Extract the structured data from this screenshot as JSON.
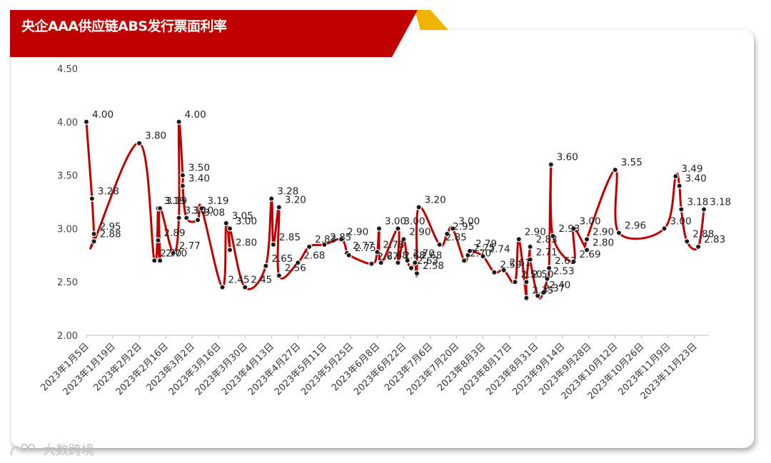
{
  "title": "央企AAA供应链ABS发行票面利率",
  "watermark": "大数跨境",
  "colors": {
    "line": "#c00000",
    "banner": "#c00000",
    "banner_accent": "#f0b400",
    "point": "#1a1a1a"
  },
  "chart_data": {
    "type": "line",
    "title": "央企AAA供应链ABS发行票面利率",
    "xlabel": "",
    "ylabel": "",
    "ylim": [
      2.0,
      4.5
    ],
    "y_ticks": [
      "2.00",
      "2.50",
      "3.00",
      "3.50",
      "4.00",
      "4.50"
    ],
    "x_tick_labels": [
      "2023年1月5日",
      "2023年1月19日",
      "2023年2月2日",
      "2023年2月16日",
      "2023年3月2日",
      "2023年3月16日",
      "2023年3月30日",
      "2023年4月13日",
      "2023年4月27日",
      "2023年5月11日",
      "2023年5月25日",
      "2023年6月8日",
      "2023年6月22日",
      "2023年7月6日",
      "2023年7月20日",
      "2023年8月3日",
      "2023年8月17日",
      "2023年8月31日",
      "2023年9月14日",
      "2023年9月28日",
      "2023年10月12日",
      "2023年10月26日",
      "2023年11月9日",
      "2023年11月23日"
    ],
    "grid": false,
    "legend": "none",
    "series": [
      {
        "values": [
          {
            "x": "2023-01-05",
            "y": 4.0,
            "label": "4.00"
          },
          {
            "x": "2023-01-08",
            "y": 3.28,
            "label": "3.28"
          },
          {
            "x": "2023-01-09",
            "y": 2.95,
            "label": "2.95"
          },
          {
            "x": "2023-01-09",
            "y": 2.88,
            "label": "2.88"
          },
          {
            "x": "2023-02-02",
            "y": 3.8,
            "label": "3.80"
          },
          {
            "x": "2023-02-10",
            "y": 2.7,
            "label": "2.70"
          },
          {
            "x": "2023-02-12",
            "y": 3.19,
            "label": "3.19"
          },
          {
            "x": "2023-02-12",
            "y": 2.89,
            "label": "2.89"
          },
          {
            "x": "2023-02-13",
            "y": 2.7,
            "label": "2.70"
          },
          {
            "x": "2023-02-13",
            "y": 3.19,
            "label": "3.19"
          },
          {
            "x": "2023-02-20",
            "y": 2.77,
            "label": "2.77"
          },
          {
            "x": "2023-02-23",
            "y": 3.1,
            "label": "3.10"
          },
          {
            "x": "2023-02-23",
            "y": 4.0,
            "label": "4.00"
          },
          {
            "x": "2023-02-25",
            "y": 3.5,
            "label": "3.50"
          },
          {
            "x": "2023-02-25",
            "y": 3.4,
            "label": "3.40"
          },
          {
            "x": "2023-02-27",
            "y": 3.1,
            "label": "3.10"
          },
          {
            "x": "2023-03-05",
            "y": 3.08,
            "label": "3.08"
          },
          {
            "x": "2023-03-07",
            "y": 3.19,
            "label": "3.19"
          },
          {
            "x": "2023-03-18",
            "y": 2.45,
            "label": "2.45"
          },
          {
            "x": "2023-03-20",
            "y": 3.05,
            "label": "3.05"
          },
          {
            "x": "2023-03-22",
            "y": 2.8,
            "label": "2.80"
          },
          {
            "x": "2023-03-22",
            "y": 3.0,
            "label": "3.00"
          },
          {
            "x": "2023-03-30",
            "y": 2.45,
            "label": "2.45"
          },
          {
            "x": "2023-04-10",
            "y": 2.65,
            "label": "2.65"
          },
          {
            "x": "2023-04-13",
            "y": 3.28,
            "label": "3.28"
          },
          {
            "x": "2023-04-14",
            "y": 2.85,
            "label": "2.85"
          },
          {
            "x": "2023-04-17",
            "y": 3.2,
            "label": "3.20"
          },
          {
            "x": "2023-04-17",
            "y": 2.56,
            "label": "2.56"
          },
          {
            "x": "2023-04-27",
            "y": 2.68,
            "label": "2.68"
          },
          {
            "x": "2023-05-03",
            "y": 2.83,
            "label": "2.83"
          },
          {
            "x": "2023-05-11",
            "y": 2.85,
            "label": "2.85"
          },
          {
            "x": "2023-05-20",
            "y": 2.9,
            "label": "2.90"
          },
          {
            "x": "2023-05-23",
            "y": 2.77,
            "label": "2.77"
          },
          {
            "x": "2023-05-24",
            "y": 2.75,
            "label": "2.75"
          },
          {
            "x": "2023-06-05",
            "y": 2.67,
            "label": "2.67"
          },
          {
            "x": "2023-06-08",
            "y": 2.78,
            "label": "2.78"
          },
          {
            "x": "2023-06-09",
            "y": 3.0,
            "label": "3.00"
          },
          {
            "x": "2023-06-10",
            "y": 2.68,
            "label": "2.68"
          },
          {
            "x": "2023-06-19",
            "y": 3.0,
            "label": "3.00"
          },
          {
            "x": "2023-06-19",
            "y": 2.68,
            "label": "2.68"
          },
          {
            "x": "2023-06-22",
            "y": 2.9,
            "label": "2.90"
          },
          {
            "x": "2023-06-24",
            "y": 2.7,
            "label": "2.70"
          },
          {
            "x": "2023-06-26",
            "y": 2.63,
            "label": "2.63"
          },
          {
            "x": "2023-06-28",
            "y": 2.68,
            "label": "2.68"
          },
          {
            "x": "2023-06-29",
            "y": 2.58,
            "label": "2.58"
          },
          {
            "x": "2023-06-30",
            "y": 3.2,
            "label": "3.20"
          },
          {
            "x": "2023-07-11",
            "y": 2.85,
            "label": "2.85"
          },
          {
            "x": "2023-07-15",
            "y": 2.95,
            "label": "2.95"
          },
          {
            "x": "2023-07-18",
            "y": 3.0,
            "label": "3.00"
          },
          {
            "x": "2023-07-24",
            "y": 2.7,
            "label": "2.70"
          },
          {
            "x": "2023-07-26",
            "y": 2.75,
            "label": "2.75"
          },
          {
            "x": "2023-07-27",
            "y": 2.79,
            "label": "2.79"
          },
          {
            "x": "2023-08-03",
            "y": 2.74,
            "label": "2.74"
          },
          {
            "x": "2023-08-09",
            "y": 2.59,
            "label": "2.59"
          },
          {
            "x": "2023-08-14",
            "y": 2.61,
            "label": "2.61"
          },
          {
            "x": "2023-08-20",
            "y": 2.5,
            "label": "2.50"
          },
          {
            "x": "2023-08-22",
            "y": 2.9,
            "label": "2.90"
          },
          {
            "x": "2023-08-26",
            "y": 2.35,
            "label": "2.35"
          },
          {
            "x": "2023-08-26",
            "y": 2.5,
            "label": "2.50"
          },
          {
            "x": "2023-08-28",
            "y": 2.83,
            "label": "2.83"
          },
          {
            "x": "2023-08-28",
            "y": 2.71,
            "label": "2.71"
          },
          {
            "x": "2023-09-01",
            "y": 2.37,
            "label": "2.37"
          },
          {
            "x": "2023-09-04",
            "y": 2.4,
            "label": "2.40"
          },
          {
            "x": "2023-09-06",
            "y": 2.53,
            "label": "2.53"
          },
          {
            "x": "2023-09-07",
            "y": 2.63,
            "label": "2.63"
          },
          {
            "x": "2023-09-08",
            "y": 3.6,
            "label": "3.60"
          },
          {
            "x": "2023-09-09",
            "y": 2.93,
            "label": "2.93"
          },
          {
            "x": "2023-09-20",
            "y": 2.69,
            "label": "2.69"
          },
          {
            "x": "2023-09-20",
            "y": 3.0,
            "label": "3.00"
          },
          {
            "x": "2023-09-27",
            "y": 2.8,
            "label": "2.80"
          },
          {
            "x": "2023-09-27",
            "y": 2.9,
            "label": "2.90"
          },
          {
            "x": "2023-10-12",
            "y": 3.55,
            "label": "3.55"
          },
          {
            "x": "2023-10-14",
            "y": 2.96,
            "label": "2.96"
          },
          {
            "x": "2023-11-07",
            "y": 3.0,
            "label": "3.00"
          },
          {
            "x": "2023-11-13",
            "y": 3.49,
            "label": "3.49"
          },
          {
            "x": "2023-11-15",
            "y": 3.4,
            "label": "3.40"
          },
          {
            "x": "2023-11-16",
            "y": 3.18,
            "label": "3.18"
          },
          {
            "x": "2023-11-19",
            "y": 2.88,
            "label": "2.88"
          },
          {
            "x": "2023-11-25",
            "y": 2.83,
            "label": "2.83"
          },
          {
            "x": "2023-11-28",
            "y": 3.18,
            "label": "3.18"
          }
        ]
      }
    ]
  }
}
